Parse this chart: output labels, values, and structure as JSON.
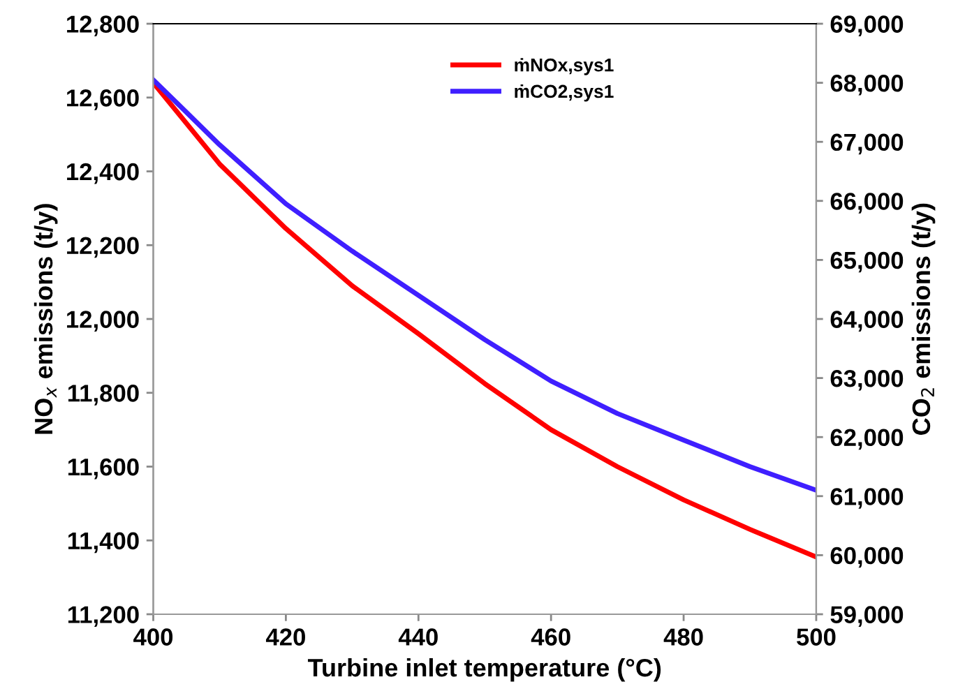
{
  "chart_data": {
    "type": "line",
    "xlabel": "Turbine inlet temperature (°C)",
    "ylabel": "NO$_{x}$ emissions (t/y)",
    "y2label": "CO$_{2}$ emissions (t/y)",
    "x": [
      400,
      410,
      420,
      430,
      440,
      450,
      460,
      470,
      480,
      490,
      500
    ],
    "series": [
      {
        "name": "ṁNOx,sys1",
        "color": "#ff0000",
        "values": [
          12640,
          12420,
          12245,
          12090,
          11960,
          11825,
          11700,
          11600,
          11510,
          11430,
          11355
        ]
      },
      {
        "name": "ṁCO2,sys1",
        "color": "#3f1fff",
        "axis": "y2",
        "values": [
          68050,
          66950,
          65950,
          65150,
          64400,
          63650,
          62950,
          62400,
          61950,
          61500,
          61100
        ]
      }
    ],
    "xlim": [
      400,
      500
    ],
    "xticks": [
      400,
      420,
      440,
      460,
      480,
      500
    ],
    "ylim": [
      11200,
      12800
    ],
    "yticks": [
      {
        "value": 11200,
        "label": "11,200"
      },
      {
        "value": 11400,
        "label": "11,400"
      },
      {
        "value": 11600,
        "label": "11,600"
      },
      {
        "value": 11800,
        "label": "11,800"
      },
      {
        "value": 12000,
        "label": "12,000"
      },
      {
        "value": 12200,
        "label": "12,200"
      },
      {
        "value": 12400,
        "label": "12,400"
      },
      {
        "value": 12600,
        "label": "12,600"
      },
      {
        "value": 12800,
        "label": "12,800"
      }
    ],
    "y2lim": [
      59000,
      69000
    ],
    "y2ticks": [
      {
        "value": 59000,
        "label": "59,000"
      },
      {
        "value": 60000,
        "label": "60,000"
      },
      {
        "value": 61000,
        "label": "61,000"
      },
      {
        "value": 62000,
        "label": "62,000"
      },
      {
        "value": 63000,
        "label": "63,000"
      },
      {
        "value": 64000,
        "label": "64,000"
      },
      {
        "value": 65000,
        "label": "65,000"
      },
      {
        "value": 66000,
        "label": "66,000"
      },
      {
        "value": 67000,
        "label": "67,000"
      },
      {
        "value": 68000,
        "label": "68,000"
      },
      {
        "value": 69000,
        "label": "69,000"
      }
    ],
    "grid": false,
    "legend": "top right",
    "marker": "none",
    "line_style": "solid"
  }
}
